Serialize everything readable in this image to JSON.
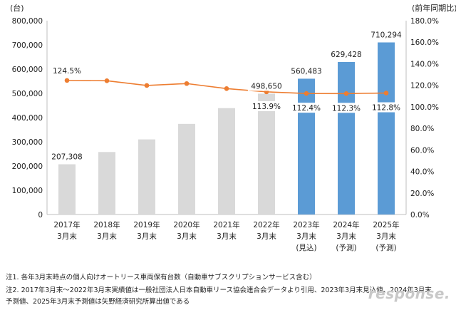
{
  "chart_data": {
    "type": "bar",
    "y_unit_label": "(台)",
    "y2_unit_label": "(前年同期比)",
    "categories": [
      [
        "2017年",
        "3月末"
      ],
      [
        "2018年",
        "3月末"
      ],
      [
        "2019年",
        "3月末"
      ],
      [
        "2020年",
        "3月末"
      ],
      [
        "2021年",
        "3月末"
      ],
      [
        "2022年",
        "3月末"
      ],
      [
        "2023年",
        "3月末",
        "(見込)"
      ],
      [
        "2024年",
        "3月末",
        "(予測)"
      ],
      [
        "2025年",
        "3月末",
        "(予測)"
      ]
    ],
    "series": [
      {
        "type": "bar",
        "values": [
          207308,
          258000,
          310000,
          374000,
          439000,
          498650,
          560483,
          629428,
          710294
        ],
        "colors": [
          "#d9d9d9",
          "#d9d9d9",
          "#d9d9d9",
          "#d9d9d9",
          "#d9d9d9",
          "#d9d9d9",
          "#5b9bd5",
          "#5b9bd5",
          "#5b9bd5"
        ]
      },
      {
        "type": "line",
        "axis": "y2",
        "color": "#ed7d31",
        "values": [
          124.5,
          124.2,
          119.8,
          121.6,
          116.9,
          113.9,
          112.4,
          112.3,
          112.8
        ]
      }
    ],
    "bar_labels": [
      "207,308",
      "",
      "",
      "",
      "",
      "498,650",
      "560,483",
      "629,428",
      "710,294"
    ],
    "line_labels": [
      "124.5%",
      "",
      "",
      "",
      "",
      "113.9%",
      "112.4%",
      "112.3%",
      "112.8%"
    ],
    "ylim": [
      0,
      800000
    ],
    "y_ticks": [
      "0",
      "100,000",
      "200,000",
      "300,000",
      "400,000",
      "500,000",
      "600,000",
      "700,000",
      "800,000"
    ],
    "y2lim": [
      0,
      180
    ],
    "y2_ticks": [
      "0.0%",
      "20.0%",
      "40.0%",
      "60.0%",
      "80.0%",
      "100.0%",
      "120.0%",
      "140.0%",
      "160.0%",
      "180.0%"
    ],
    "grid": false
  },
  "notes": [
    "注1. 各年3月末時点の個人向けオートリース車両保有台数（自動車サブスクリプションサービス含む）",
    "注2. 2017年3月末～2022年3月末実績値は一般社団法人日本自動車リース協会連合会データより引用、2023年3月末見込値、2024年3月末",
    "予測値、2025年3月末予測値は矢野経済研究所算出値である"
  ],
  "watermark": "response."
}
